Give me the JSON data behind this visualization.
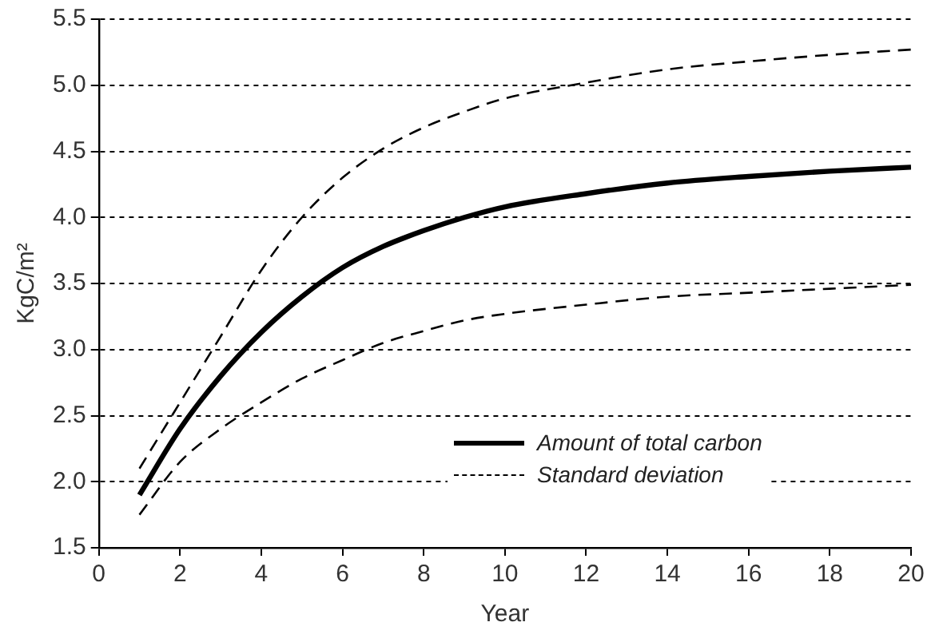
{
  "chart_data": {
    "type": "line",
    "xlabel": "Year",
    "ylabel": "KgC/m²",
    "xlim": [
      0,
      20
    ],
    "xticks": [
      0,
      2,
      4,
      6,
      8,
      10,
      12,
      14,
      16,
      18,
      20
    ],
    "ylim": [
      1.5,
      5.5
    ],
    "yticks": [
      1.5,
      {
        "value": 2,
        "label": "2.0"
      },
      2.5,
      {
        "value": 3,
        "label": "3.0"
      },
      3.5,
      {
        "value": 4,
        "label": "4.0"
      },
      4.5,
      {
        "value": 5,
        "label": "5.0"
      },
      5.5
    ],
    "grid": "y",
    "legend": "bottom right",
    "marker": "none",
    "x": [
      1,
      2,
      3,
      4,
      5,
      6,
      7,
      8,
      9,
      10,
      12,
      14,
      16,
      18,
      20
    ],
    "series": [
      {
        "name": "Amount of total carbon",
        "color": "#000000",
        "line_style": "solid",
        "values": [
          1.9,
          2.4,
          2.8,
          3.13,
          3.4,
          3.62,
          3.78,
          3.9,
          4.0,
          4.08,
          4.18,
          4.26,
          4.31,
          4.35,
          4.38
        ]
      },
      {
        "name": "Standard deviation",
        "color": "#000000",
        "line_style": "dashed",
        "values": [
          2.1,
          2.6,
          3.1,
          3.6,
          4.0,
          4.3,
          4.52,
          4.68,
          4.8,
          4.9,
          5.02,
          5.12,
          5.18,
          5.23,
          5.27
        ]
      },
      {
        "color": "#000000",
        "line_style": "dashed",
        "values": [
          1.75,
          2.15,
          2.4,
          2.6,
          2.78,
          2.92,
          3.05,
          3.14,
          3.22,
          3.27,
          3.34,
          3.4,
          3.43,
          3.46,
          3.49
        ]
      }
    ]
  }
}
